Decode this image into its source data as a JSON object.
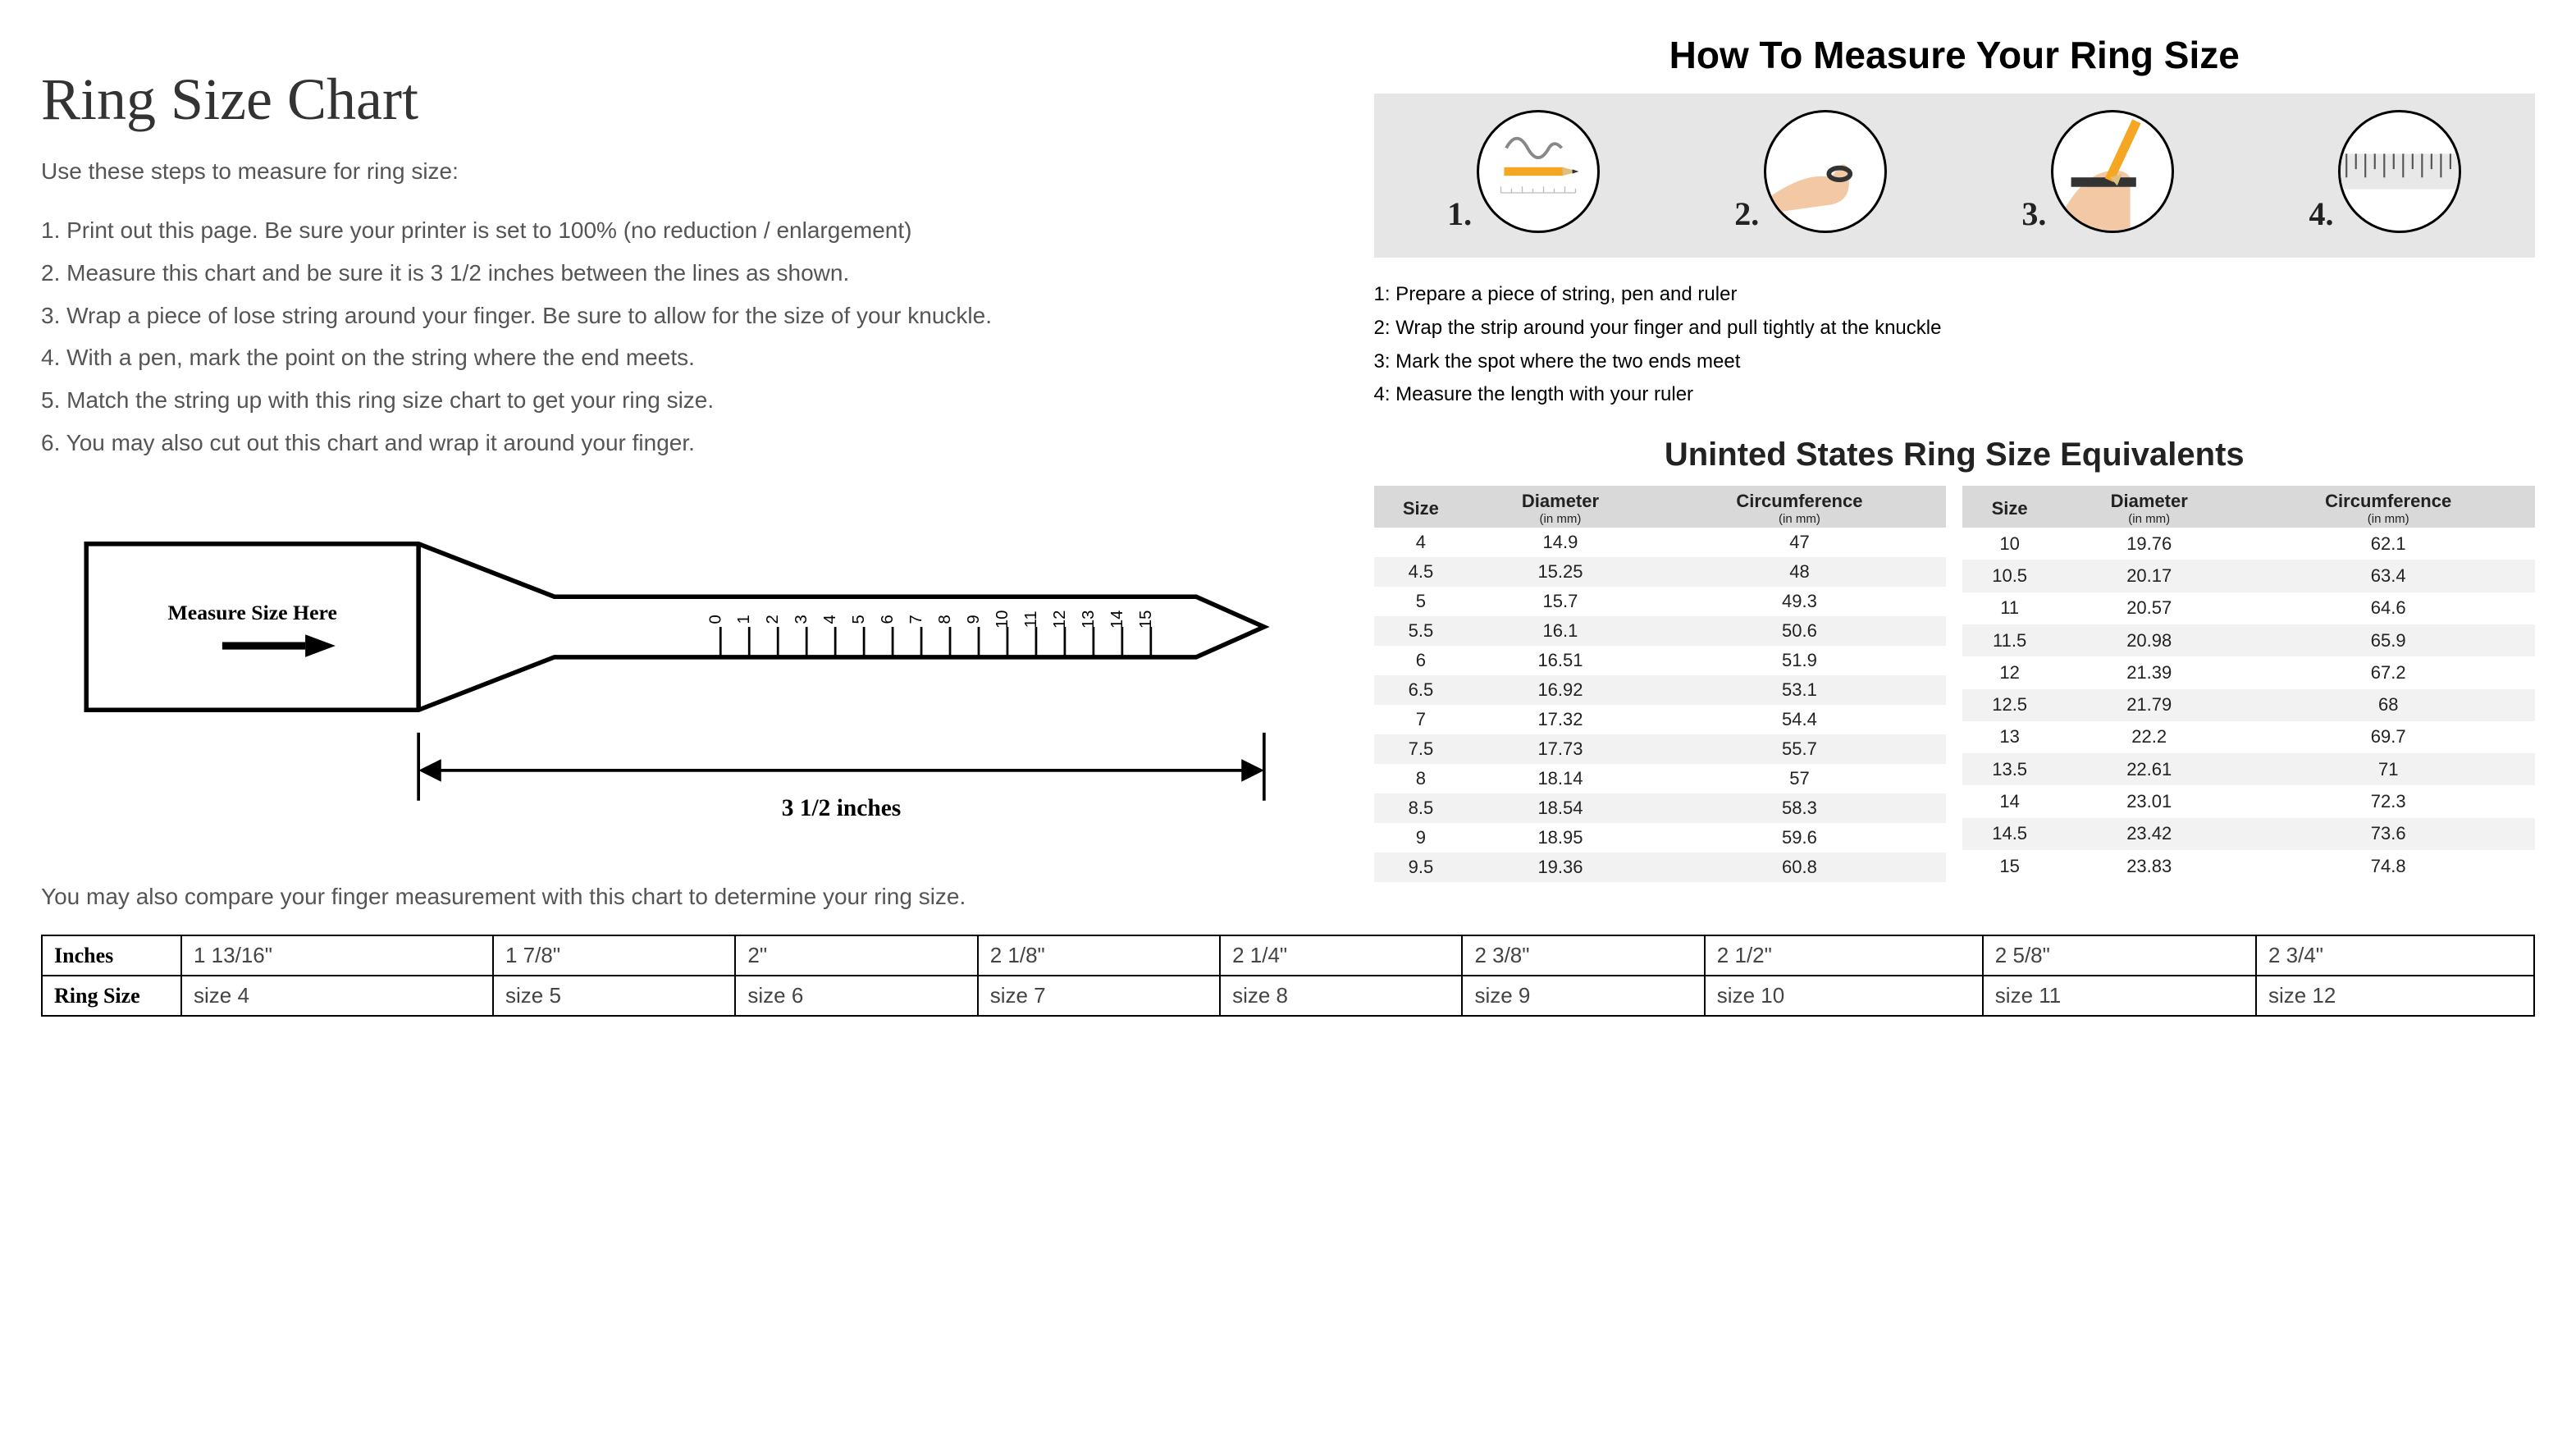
{
  "left": {
    "title": "Ring Size Chart",
    "intro": "Use these steps to measure for ring size:",
    "steps": [
      "1. Print out this page. Be sure your printer is set to 100% (no reduction / enlargement)",
      "2. Measure this chart and be sure it is 3 1/2 inches between the lines as shown.",
      "3. Wrap a piece of lose string around your finger. Be sure to allow for the size of your knuckle.",
      "4. With a pen, mark the point on the string where the end meets.",
      "5. Match the string up with this ring size chart to get your ring size.",
      "6. You may also cut out this chart and wrap it around your finger."
    ],
    "ruler": {
      "measure_label": "Measure Size Here",
      "span_label": "3 1/2 inches",
      "ticks": [
        "0",
        "1",
        "2",
        "3",
        "4",
        "5",
        "6",
        "7",
        "8",
        "9",
        "10",
        "11",
        "12",
        "13",
        "14",
        "15"
      ]
    },
    "compare_text": "You may also compare your finger measurement with this chart to determine your ring size."
  },
  "right": {
    "howto_title": "How To Measure Your Ring Size",
    "howto_steps": [
      "1.",
      "2.",
      "3.",
      "4."
    ],
    "howto_instructions": [
      "1: Prepare a piece of string, pen and ruler",
      "2: Wrap the strip around your finger and pull tightly at the knuckle",
      "3: Mark the spot where the two ends meet",
      "4: Measure the length with your ruler"
    ],
    "equiv_title": "Uninted States Ring Size Equivalents",
    "equiv_headers": {
      "size": "Size",
      "diameter": "Diameter",
      "diameter_sub": "(in mm)",
      "circumference": "Circumference",
      "circumference_sub": "(in mm)"
    },
    "equiv_left": [
      {
        "s": "4",
        "d": "14.9",
        "c": "47"
      },
      {
        "s": "4.5",
        "d": "15.25",
        "c": "48"
      },
      {
        "s": "5",
        "d": "15.7",
        "c": "49.3"
      },
      {
        "s": "5.5",
        "d": "16.1",
        "c": "50.6"
      },
      {
        "s": "6",
        "d": "16.51",
        "c": "51.9"
      },
      {
        "s": "6.5",
        "d": "16.92",
        "c": "53.1"
      },
      {
        "s": "7",
        "d": "17.32",
        "c": "54.4"
      },
      {
        "s": "7.5",
        "d": "17.73",
        "c": "55.7"
      },
      {
        "s": "8",
        "d": "18.14",
        "c": "57"
      },
      {
        "s": "8.5",
        "d": "18.54",
        "c": "58.3"
      },
      {
        "s": "9",
        "d": "18.95",
        "c": "59.6"
      },
      {
        "s": "9.5",
        "d": "19.36",
        "c": "60.8"
      }
    ],
    "equiv_right": [
      {
        "s": "10",
        "d": "19.76",
        "c": "62.1"
      },
      {
        "s": "10.5",
        "d": "20.17",
        "c": "63.4"
      },
      {
        "s": "11",
        "d": "20.57",
        "c": "64.6"
      },
      {
        "s": "11.5",
        "d": "20.98",
        "c": "65.9"
      },
      {
        "s": "12",
        "d": "21.39",
        "c": "67.2"
      },
      {
        "s": "12.5",
        "d": "21.79",
        "c": "68"
      },
      {
        "s": "13",
        "d": "22.2",
        "c": "69.7"
      },
      {
        "s": "13.5",
        "d": "22.61",
        "c": "71"
      },
      {
        "s": "14",
        "d": "23.01",
        "c": "72.3"
      },
      {
        "s": "14.5",
        "d": "23.42",
        "c": "73.6"
      },
      {
        "s": "15",
        "d": "23.83",
        "c": "74.8"
      }
    ]
  },
  "compare_table": {
    "row_labels": {
      "inches": "Inches",
      "ring_size": "Ring Size"
    },
    "inches": [
      "1 13/16\"",
      "1 7/8\"",
      "2\"",
      "2 1/8\"",
      "2 1/4\"",
      "2 3/8\"",
      "2 1/2\"",
      "2 5/8\"",
      "2 3/4\""
    ],
    "sizes": [
      "size 4",
      "size 5",
      "size 6",
      "size 7",
      "size 8",
      "size 9",
      "size 10",
      "size 11",
      "size 12"
    ]
  },
  "colors": {
    "text_gray": "#555555",
    "heading_gray": "#333333",
    "strip_bg": "#e6e6e6",
    "row_alt": "#f2f2f2",
    "header_bg": "#d9d9d9",
    "border": "#000000",
    "pencil": "#f5a623",
    "skin": "#f2c9a4",
    "ruler_gray": "#cfcfcf"
  }
}
